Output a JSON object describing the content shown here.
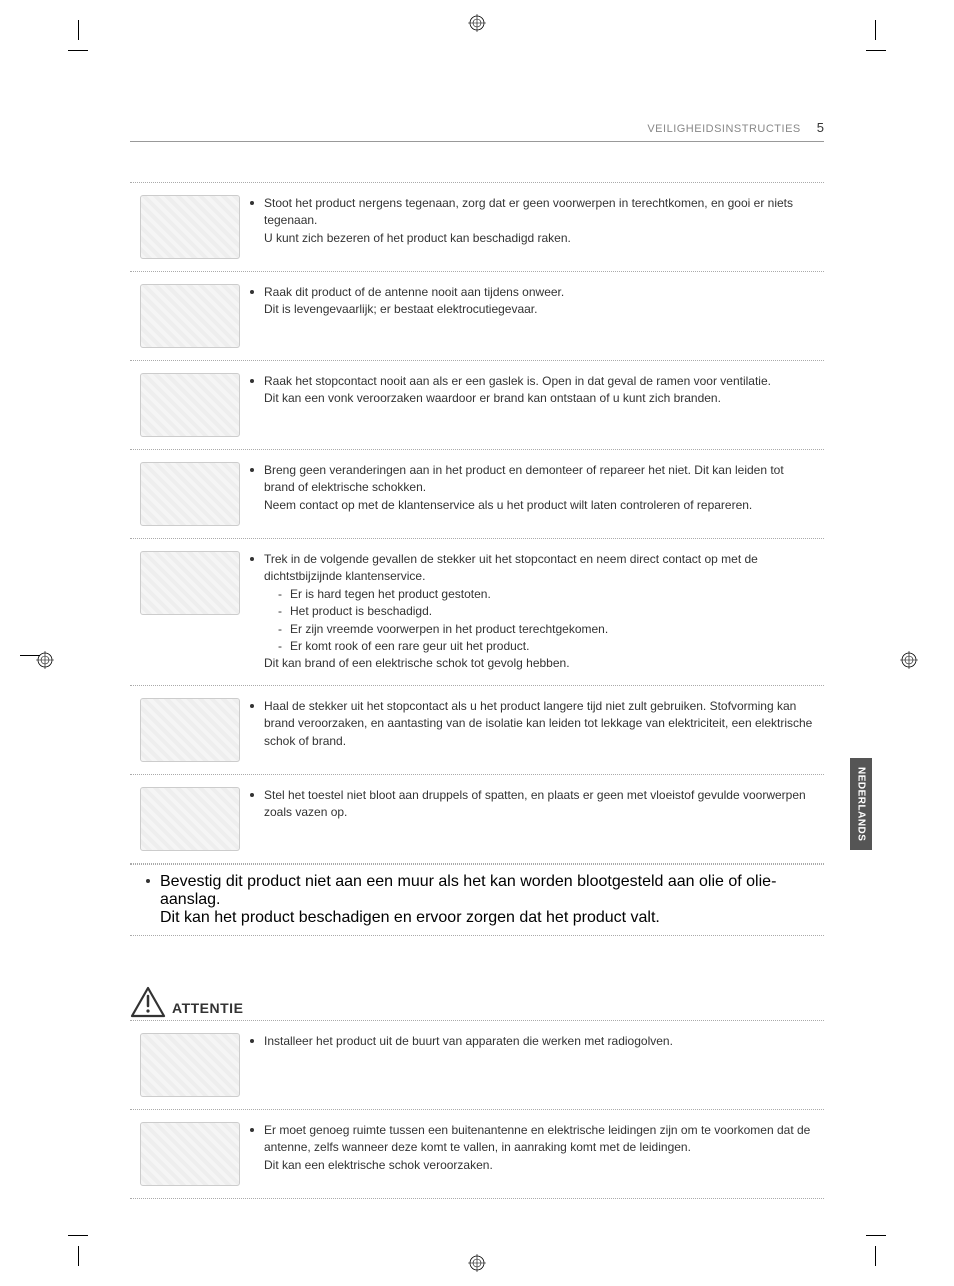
{
  "header": {
    "title": "VEILIGHEIDSINSTRUCTIES",
    "page": "5"
  },
  "languageTab": "NEDERLANDS",
  "warnings": [
    {
      "icon": "tv-impact",
      "lines": [
        "Stoot het product nergens tegenaan, zorg dat er geen voorwerpen in terechtkomen, en gooi er niets tegenaan.",
        "U kunt zich bezeren of het product kan beschadigd raken."
      ]
    },
    {
      "icon": "tv-lightning",
      "lines": [
        "Raak dit product of de antenne nooit aan tijdens onweer.",
        "Dit is levengevaarlijk; er bestaat elektrocutiegevaar."
      ]
    },
    {
      "icon": "tv-gasleak",
      "lines": [
        "Raak het stopcontact nooit aan als er een gaslek is. Open in dat geval de ramen voor ventilatie.",
        "Dit kan een vonk veroorzaken waardoor er brand kan ontstaan of u kunt zich branden."
      ]
    },
    {
      "icon": "tv-disassemble",
      "lines": [
        "Breng geen veranderingen aan in het product en demonteer of repareer het niet. Dit kan leiden tot brand of elektrische schokken.",
        "Neem contact op met de klantenservice als u het product wilt laten controleren of repareren."
      ]
    },
    {
      "icon": "tv-unplug",
      "lines": [
        "Trek in de volgende gevallen de stekker uit het stopcontact en neem direct contact op met de dichtstbijzijnde klantenservice."
      ],
      "sublist": [
        "Er is hard tegen het product gestoten.",
        "Het product is beschadigd.",
        "Er zijn vreemde voorwerpen in het product terechtgekomen.",
        "Er komt rook of een rare geur uit het product."
      ],
      "trailing": "Dit kan brand of een elektrische schok tot gevolg hebben."
    },
    {
      "icon": "tv-longtime",
      "lines": [
        "Haal de stekker uit het stopcontact als u het product langere tijd niet zult gebruiken. Stofvorming kan brand veroorzaken, en aantasting van de isolatie kan leiden tot lekkage van elektriciteit, een elektrische schok of brand."
      ]
    },
    {
      "icon": "tv-liquid",
      "lines": [
        "Stel het toestel niet bloot aan druppels of spatten, en plaats er geen met vloeistof gevulde voorwerpen zoals vazen op."
      ]
    }
  ],
  "fullWidthWarning": {
    "lines": [
      "Bevestig dit product niet aan een muur als het kan worden blootgesteld aan olie of olie-aanslag.",
      "Dit kan het product beschadigen en ervoor zorgen dat het product valt."
    ]
  },
  "attentionLabel": "ATTENTIE",
  "attentions": [
    {
      "icon": "house-radio",
      "lines": [
        "Installeer het product uit de buurt van apparaten die werken met radiogolven."
      ]
    },
    {
      "icon": "house-antenna",
      "lines": [
        "Er moet genoeg ruimte tussen een buitenantenne en elektrische leidingen zijn om te voorkomen dat de antenne, zelfs wanneer deze komt te vallen, in aanraking komt met de leidingen.",
        "Dit kan een elektrische schok veroorzaken."
      ]
    }
  ]
}
